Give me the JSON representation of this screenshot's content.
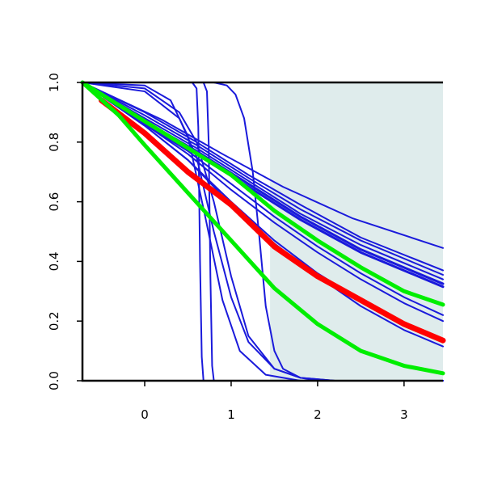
{
  "chart_data": {
    "type": "line",
    "title": "",
    "xlabel": "",
    "ylabel": "",
    "xlim": [
      -0.72,
      3.45
    ],
    "ylim": [
      0,
      1
    ],
    "x_ticks": [
      0,
      1,
      2,
      3
    ],
    "x_tick_labels": [
      "0",
      "1",
      "2",
      "3"
    ],
    "y_ticks": [
      0,
      0.2,
      0.4,
      0.6,
      0.8,
      1.0
    ],
    "y_tick_labels": [
      "0.0",
      "0.2",
      "0.4",
      "0.6",
      "0.8",
      "1.0"
    ],
    "grid": false,
    "legend": "none",
    "shaded_region": {
      "x_from": 1.45,
      "x_to": 3.45,
      "color": "#dfecec"
    },
    "colors": {
      "blue": "#1a1adb",
      "red": "#ff0000",
      "green": "#00ee00",
      "frame": "#000000"
    },
    "series": [
      {
        "color": "blue",
        "width": 2,
        "points": [
          [
            -0.72,
            1
          ],
          [
            0.2,
            0.875
          ],
          [
            0.9,
            0.76
          ],
          [
            1.6,
            0.65
          ],
          [
            2.4,
            0.545
          ],
          [
            3.45,
            0.445
          ]
        ]
      },
      {
        "color": "blue",
        "width": 2,
        "points": [
          [
            -0.72,
            1
          ],
          [
            0.0,
            0.9
          ],
          [
            0.6,
            0.8
          ],
          [
            1.2,
            0.69
          ],
          [
            1.8,
            0.59
          ],
          [
            2.5,
            0.48
          ],
          [
            3.45,
            0.37
          ]
        ]
      },
      {
        "color": "blue",
        "width": 2,
        "points": [
          [
            -0.72,
            1
          ],
          [
            0.0,
            0.89
          ],
          [
            0.6,
            0.79
          ],
          [
            1.2,
            0.68
          ],
          [
            1.8,
            0.575
          ],
          [
            2.5,
            0.47
          ],
          [
            3.45,
            0.355
          ]
        ]
      },
      {
        "color": "blue",
        "width": 2,
        "points": [
          [
            -0.72,
            1
          ],
          [
            0.0,
            0.88
          ],
          [
            0.6,
            0.78
          ],
          [
            1.2,
            0.67
          ],
          [
            1.8,
            0.56
          ],
          [
            2.5,
            0.455
          ],
          [
            3.45,
            0.34
          ]
        ]
      },
      {
        "color": "blue",
        "width": 3,
        "points": [
          [
            -0.72,
            1
          ],
          [
            0.0,
            0.87
          ],
          [
            0.6,
            0.77
          ],
          [
            1.2,
            0.66
          ],
          [
            1.8,
            0.55
          ],
          [
            2.5,
            0.44
          ],
          [
            3.45,
            0.325
          ]
        ]
      },
      {
        "color": "blue",
        "width": 3,
        "points": [
          [
            -0.72,
            1
          ],
          [
            0.0,
            0.865
          ],
          [
            0.6,
            0.76
          ],
          [
            1.2,
            0.65
          ],
          [
            1.8,
            0.54
          ],
          [
            2.5,
            0.43
          ],
          [
            3.45,
            0.315
          ]
        ]
      },
      {
        "color": "blue",
        "width": 2,
        "points": [
          [
            -0.72,
            1
          ],
          [
            0.0,
            0.86
          ],
          [
            0.5,
            0.77
          ],
          [
            1.0,
            0.66
          ],
          [
            1.5,
            0.55
          ],
          [
            2.0,
            0.45
          ],
          [
            2.5,
            0.36
          ],
          [
            3.0,
            0.28
          ],
          [
            3.45,
            0.22
          ]
        ]
      },
      {
        "color": "blue",
        "width": 2,
        "points": [
          [
            -0.72,
            1
          ],
          [
            0.0,
            0.86
          ],
          [
            0.5,
            0.76
          ],
          [
            1.0,
            0.64
          ],
          [
            1.5,
            0.53
          ],
          [
            2.0,
            0.43
          ],
          [
            2.5,
            0.34
          ],
          [
            3.0,
            0.26
          ],
          [
            3.45,
            0.2
          ]
        ]
      },
      {
        "color": "blue",
        "width": 2,
        "points": [
          [
            -0.72,
            1
          ],
          [
            0.0,
            0.855
          ],
          [
            0.5,
            0.74
          ],
          [
            1.0,
            0.6
          ],
          [
            1.5,
            0.47
          ],
          [
            2.0,
            0.36
          ],
          [
            2.5,
            0.27
          ],
          [
            3.0,
            0.19
          ],
          [
            3.45,
            0.13
          ]
        ]
      },
      {
        "color": "blue",
        "width": 2,
        "points": [
          [
            -0.72,
            1
          ],
          [
            0.0,
            0.855
          ],
          [
            0.5,
            0.74
          ],
          [
            1.0,
            0.59
          ],
          [
            1.5,
            0.46
          ],
          [
            2.0,
            0.35
          ],
          [
            2.5,
            0.25
          ],
          [
            3.0,
            0.17
          ],
          [
            3.45,
            0.115
          ]
        ]
      },
      {
        "color": "blue",
        "width": 2,
        "points": [
          [
            -0.72,
            1
          ],
          [
            0.0,
            0.98
          ],
          [
            0.4,
            0.9
          ],
          [
            0.6,
            0.8
          ],
          [
            0.8,
            0.6
          ],
          [
            1.0,
            0.35
          ],
          [
            1.2,
            0.15
          ],
          [
            1.5,
            0.04
          ],
          [
            1.8,
            0.01
          ],
          [
            2.2,
            0
          ],
          [
            3.45,
            0
          ]
        ]
      },
      {
        "color": "blue",
        "width": 2,
        "points": [
          [
            -0.72,
            1
          ],
          [
            0.0,
            0.97
          ],
          [
            0.4,
            0.88
          ],
          [
            0.6,
            0.75
          ],
          [
            0.8,
            0.5
          ],
          [
            1.0,
            0.28
          ],
          [
            1.2,
            0.13
          ],
          [
            1.5,
            0.04
          ],
          [
            1.8,
            0.01
          ],
          [
            2.2,
            0
          ],
          [
            3.45,
            0
          ]
        ]
      },
      {
        "color": "blue",
        "width": 2,
        "points": [
          [
            -0.72,
            1
          ],
          [
            0.0,
            0.99
          ],
          [
            0.3,
            0.94
          ],
          [
            0.5,
            0.82
          ],
          [
            0.7,
            0.55
          ],
          [
            0.9,
            0.27
          ],
          [
            1.1,
            0.1
          ],
          [
            1.4,
            0.02
          ],
          [
            1.8,
            0
          ],
          [
            3.45,
            0
          ]
        ]
      },
      {
        "color": "blue",
        "width": 2,
        "points": [
          [
            -0.72,
            1
          ],
          [
            0.55,
            1
          ],
          [
            0.6,
            0.98
          ],
          [
            0.62,
            0.85
          ],
          [
            0.64,
            0.4
          ],
          [
            0.66,
            0.08
          ],
          [
            0.68,
            0
          ],
          [
            3.45,
            0
          ]
        ]
      },
      {
        "color": "blue",
        "width": 2,
        "points": [
          [
            -0.72,
            1
          ],
          [
            0.68,
            1
          ],
          [
            0.72,
            0.97
          ],
          [
            0.74,
            0.8
          ],
          [
            0.76,
            0.35
          ],
          [
            0.78,
            0.05
          ],
          [
            0.8,
            0
          ],
          [
            3.45,
            0
          ]
        ]
      },
      {
        "color": "blue",
        "width": 2,
        "points": [
          [
            -0.72,
            1
          ],
          [
            0.8,
            1
          ],
          [
            0.95,
            0.99
          ],
          [
            1.05,
            0.96
          ],
          [
            1.15,
            0.88
          ],
          [
            1.25,
            0.7
          ],
          [
            1.32,
            0.5
          ],
          [
            1.4,
            0.25
          ],
          [
            1.5,
            0.1
          ],
          [
            1.6,
            0.04
          ],
          [
            1.8,
            0.01
          ],
          [
            2.0,
            0
          ],
          [
            3.45,
            0
          ]
        ]
      },
      {
        "color": "red",
        "width": 7,
        "points": [
          [
            -0.5,
            0.94
          ],
          [
            0.0,
            0.83
          ],
          [
            0.5,
            0.7
          ],
          [
            1.0,
            0.59
          ],
          [
            1.5,
            0.45
          ],
          [
            2.0,
            0.35
          ],
          [
            2.5,
            0.27
          ],
          [
            3.0,
            0.19
          ],
          [
            3.45,
            0.135
          ]
        ]
      },
      {
        "color": "green",
        "width": 5,
        "points": [
          [
            -0.72,
            1
          ],
          [
            0.0,
            0.87
          ],
          [
            0.5,
            0.78
          ],
          [
            1.0,
            0.69
          ],
          [
            1.5,
            0.57
          ],
          [
            2.0,
            0.47
          ],
          [
            2.5,
            0.38
          ],
          [
            3.0,
            0.3
          ],
          [
            3.45,
            0.255
          ]
        ]
      },
      {
        "color": "green",
        "width": 5,
        "points": [
          [
            -0.72,
            1
          ],
          [
            -0.3,
            0.89
          ],
          [
            0.0,
            0.79
          ],
          [
            0.5,
            0.63
          ],
          [
            1.0,
            0.47
          ],
          [
            1.5,
            0.31
          ],
          [
            2.0,
            0.19
          ],
          [
            2.5,
            0.1
          ],
          [
            3.0,
            0.05
          ],
          [
            3.45,
            0.025
          ]
        ]
      }
    ]
  }
}
